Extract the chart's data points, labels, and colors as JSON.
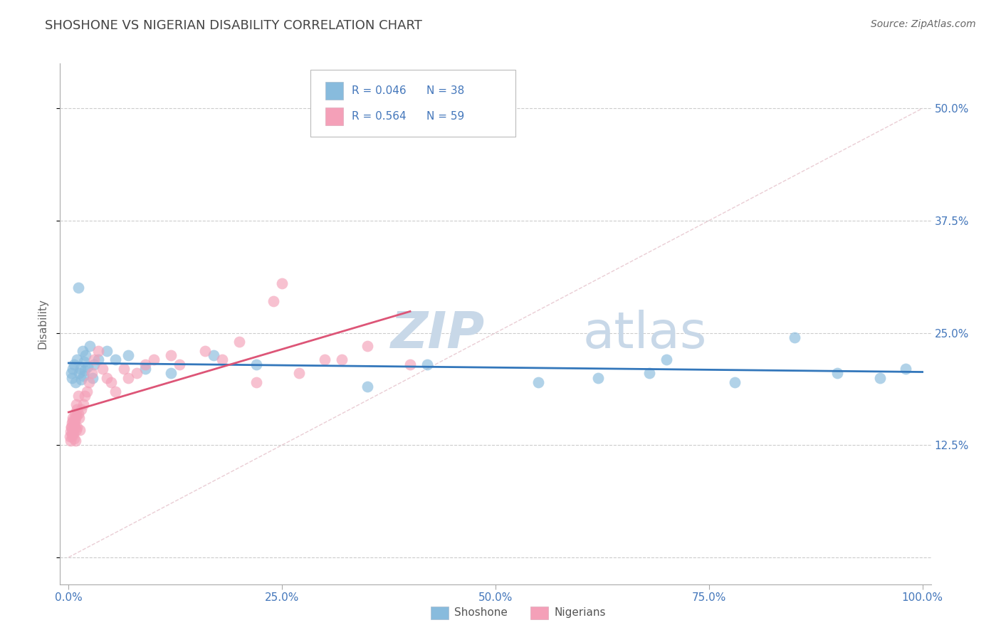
{
  "title": "SHOSHONE VS NIGERIAN DISABILITY CORRELATION CHART",
  "source": "Source: ZipAtlas.com",
  "ylabel": "Disability",
  "legend_labels": [
    "Shoshone",
    "Nigerians"
  ],
  "legend_r_values": [
    "R = 0.046",
    "R = 0.564"
  ],
  "legend_n_values": [
    "N = 38",
    "N = 59"
  ],
  "xlim": [
    -1.0,
    101.0
  ],
  "ylim": [
    -3.0,
    55.0
  ],
  "yticks": [
    0.0,
    12.5,
    25.0,
    37.5,
    50.0
  ],
  "xticks": [
    0.0,
    25.0,
    50.0,
    75.0,
    100.0
  ],
  "xtick_labels": [
    "0.0%",
    "25.0%",
    "50.0%",
    "75.0%",
    "100.0%"
  ],
  "ytick_labels": [
    "",
    "12.5%",
    "25.0%",
    "37.5%",
    "50.0%"
  ],
  "shoshone_color": "#88bbdd",
  "nigerian_color": "#f4a0b8",
  "shoshone_line_color": "#3377bb",
  "nigerian_line_color": "#dd5577",
  "ref_line_color": "#e8c8d0",
  "grid_color": "#cccccc",
  "title_color": "#444444",
  "axis_label_color": "#4477bb",
  "watermark_color": "#c8d8e8",
  "shoshone_x": [
    0.4,
    0.6,
    0.8,
    1.0,
    1.2,
    1.4,
    1.5,
    1.6,
    1.7,
    1.8,
    1.9,
    2.0,
    2.2,
    2.5,
    2.8,
    3.0,
    3.5,
    4.5,
    5.5,
    7.0,
    9.0,
    12.0,
    17.0,
    22.0,
    35.0,
    42.0,
    55.0,
    62.0,
    70.0,
    78.0,
    85.0,
    90.0,
    95.0,
    98.0,
    0.3,
    0.5,
    1.1,
    68.0
  ],
  "shoshone_y": [
    20.0,
    21.5,
    19.5,
    22.0,
    20.5,
    21.0,
    19.8,
    23.0,
    20.2,
    21.8,
    20.8,
    22.5,
    21.2,
    23.5,
    20.0,
    21.5,
    22.0,
    23.0,
    22.0,
    22.5,
    21.0,
    20.5,
    22.5,
    21.5,
    19.0,
    21.5,
    19.5,
    20.0,
    22.0,
    19.5,
    24.5,
    20.5,
    20.0,
    21.0,
    20.5,
    21.0,
    30.0,
    20.5
  ],
  "nigerian_x": [
    0.15,
    0.2,
    0.25,
    0.3,
    0.35,
    0.4,
    0.45,
    0.5,
    0.55,
    0.6,
    0.65,
    0.7,
    0.75,
    0.8,
    0.85,
    0.9,
    1.0,
    1.1,
    1.2,
    1.3,
    1.5,
    1.7,
    1.9,
    2.1,
    2.4,
    2.7,
    3.0,
    3.5,
    4.0,
    4.5,
    5.5,
    6.5,
    8.0,
    10.0,
    13.0,
    16.0,
    20.0,
    25.0,
    30.0,
    35.0,
    40.0,
    24.0,
    5.0,
    7.0,
    9.0,
    12.0,
    18.0,
    22.0,
    27.0,
    32.0,
    0.3,
    0.4,
    0.5,
    0.6,
    0.7,
    0.8,
    0.9,
    1.0,
    1.1
  ],
  "nigerian_y": [
    13.5,
    14.0,
    13.0,
    14.5,
    13.5,
    15.0,
    14.0,
    15.5,
    13.8,
    14.8,
    13.2,
    15.2,
    14.5,
    13.0,
    14.2,
    15.8,
    14.5,
    16.0,
    15.5,
    14.2,
    16.5,
    17.0,
    18.0,
    18.5,
    19.5,
    20.5,
    22.0,
    23.0,
    21.0,
    20.0,
    18.5,
    21.0,
    20.5,
    22.0,
    21.5,
    23.0,
    24.0,
    30.5,
    22.0,
    23.5,
    21.5,
    28.5,
    19.5,
    20.0,
    21.5,
    22.5,
    22.0,
    19.5,
    20.5,
    22.0,
    14.5,
    13.8,
    15.2,
    14.8,
    16.0,
    15.5,
    17.0,
    16.5,
    18.0
  ]
}
